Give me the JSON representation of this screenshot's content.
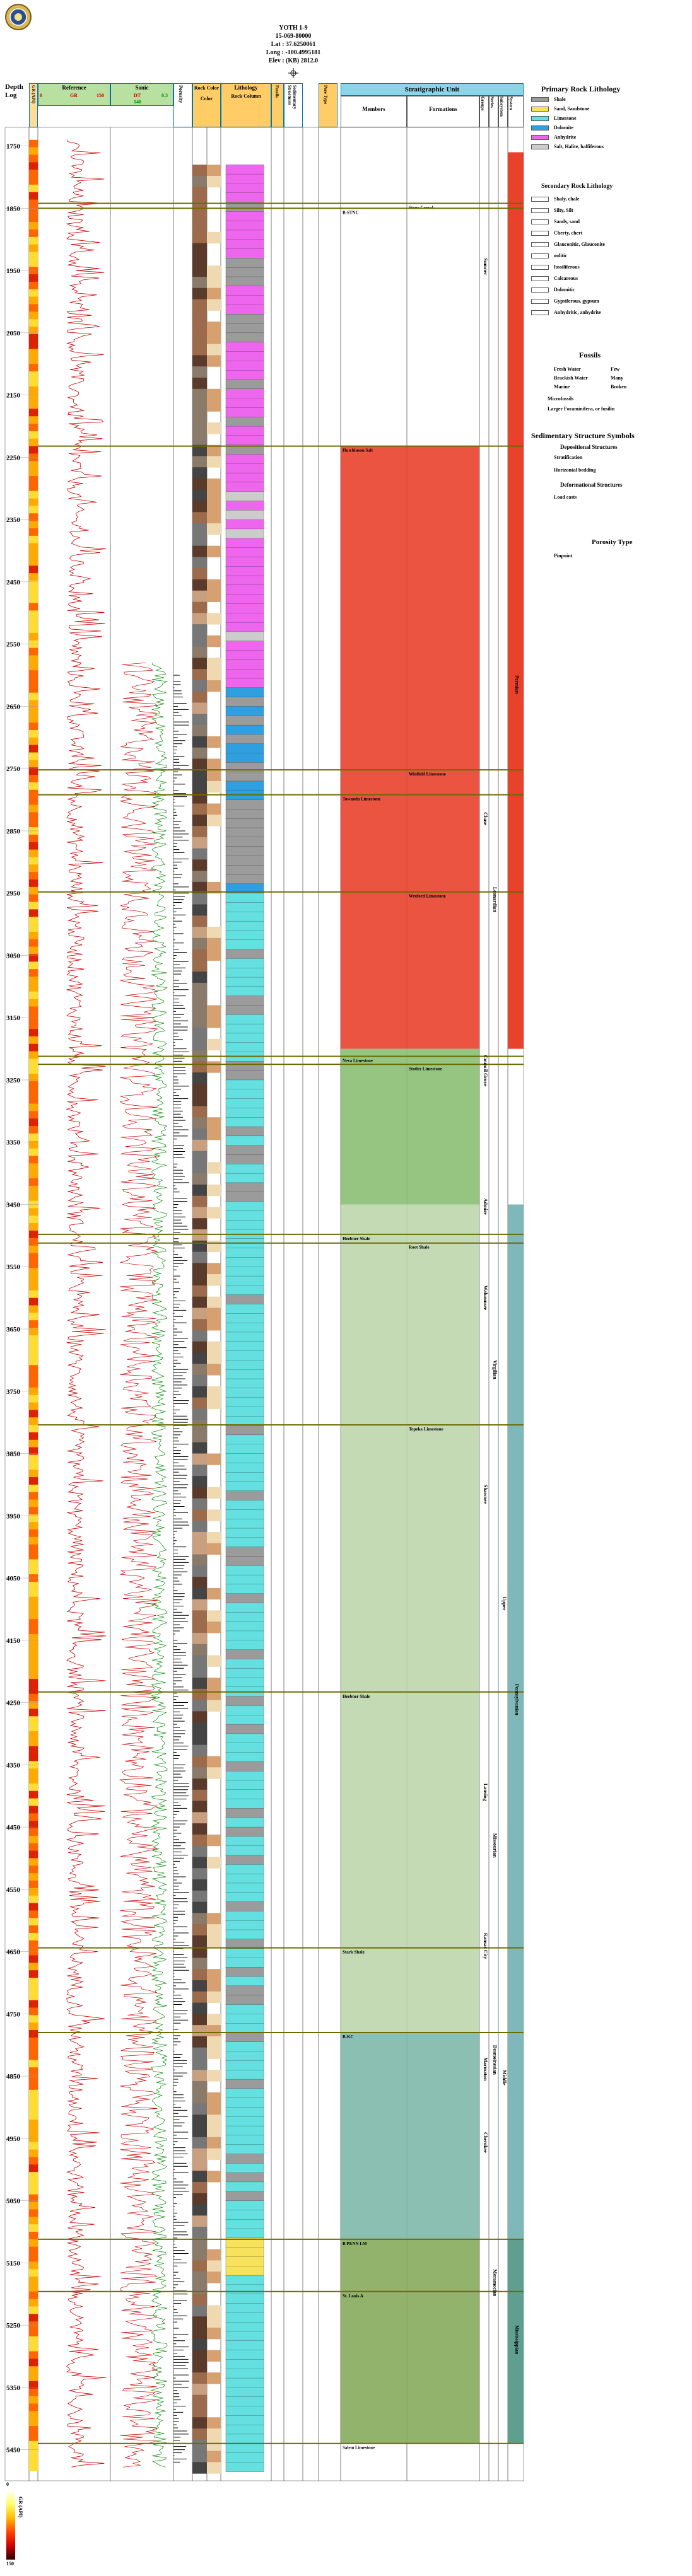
{
  "header": {
    "title": "YOTH 1-9",
    "api": "15-069-80000",
    "lat": "Lat : 37.6250061",
    "long": "Long : -100.4995181",
    "elev": "Elev : (KB) 2812.0",
    "well_symbol": "gas-well-symbol"
  },
  "columns": {
    "depth_log": "Depth Log",
    "gamma_ray": "GR (API)",
    "reference": "Reference",
    "sonic": "Sonic",
    "rock_color": "Rock Color",
    "porosity": "Porosity",
    "color": "Color",
    "lithology": "Lithology",
    "rock_column": "Rock Column",
    "fossils": "Fossils",
    "sed_structures": "Sedimentary Structures",
    "pore_type": "Pore Type",
    "strat_unit": "Stratigraphic Unit",
    "members": "Members",
    "formations": "Formations",
    "groups": "Groups",
    "series": "Series",
    "subsystem": "Subsystem",
    "system": "System"
  },
  "track_scales": {
    "gr": {
      "left": "0",
      "label": "GR",
      "right": "150"
    },
    "sonic_left": "DT",
    "sonic_right": "0.3",
    "sonic_sub": "140",
    "porosity_range": "0   0.3"
  },
  "depths": [
    "1750",
    "1850",
    "1950",
    "2050",
    "2150",
    "2250",
    "2350",
    "2450",
    "2550",
    "2650",
    "2750",
    "2850",
    "2950",
    "3050",
    "3150",
    "3250",
    "3350",
    "3450",
    "3550",
    "3650",
    "3750",
    "3850",
    "3950",
    "4050",
    "4150",
    "4250",
    "4350",
    "4450",
    "4550",
    "4650",
    "4750",
    "4850",
    "4950",
    "5050",
    "5150",
    "5250",
    "5350",
    "5450"
  ],
  "tops": [
    {
      "label": "Stone Corral",
      "col": "formation",
      "depth": 1842
    },
    {
      "label": "B-STNC",
      "col": "member",
      "depth": 1850
    },
    {
      "label": "Hutchinson Salt",
      "col": "member",
      "depth": 2232
    },
    {
      "label": "Winfield Limestone",
      "col": "formation",
      "depth": 2752
    },
    {
      "label": "Towanda Limestone",
      "col": "member",
      "depth": 2792
    },
    {
      "label": "Wreford Limestone",
      "col": "formation",
      "depth": 2948
    },
    {
      "label": "Stotler Limestone",
      "col": "formation",
      "depth": 3225
    },
    {
      "label": "Neva Limestone",
      "col": "member",
      "depth": 3212
    },
    {
      "label": "Heebner Shale",
      "col": "member",
      "depth": 3498
    },
    {
      "label": "Root Shale",
      "col": "formation",
      "depth": 3512
    },
    {
      "label": "Topeka Limestone",
      "col": "formation",
      "depth": 3804
    },
    {
      "label": "Heebner Shale",
      "col": "member",
      "depth": 4233
    },
    {
      "label": "Stark Shale",
      "col": "member",
      "depth": 4644
    },
    {
      "label": "B-KC",
      "col": "member",
      "depth": 4780
    },
    {
      "label": "B PENN LM",
      "col": "member",
      "depth": 5112
    },
    {
      "label": "St. Louis A",
      "col": "member",
      "depth": 5196
    },
    {
      "label": "Salem Limestone",
      "col": "member",
      "depth": 5440
    }
  ],
  "strat_labels": {
    "groups": [
      {
        "label": "Sumner",
        "depth": 1930
      },
      {
        "label": "Chase",
        "depth": 2820
      },
      {
        "label": "Council Grove",
        "depth": 3210
      },
      {
        "label": "Admire",
        "depth": 3440
      },
      {
        "label": "Wabaunsee",
        "depth": 3580
      },
      {
        "label": "Shawnee",
        "depth": 3900
      },
      {
        "label": "Lansing",
        "depth": 4380
      },
      {
        "label": "Kansas City",
        "depth": 4620
      },
      {
        "label": "Marmaton",
        "depth": 4820
      },
      {
        "label": "Cherokee",
        "depth": 4940
      }
    ],
    "series": [
      {
        "label": "Leonardian",
        "depth": 2940
      },
      {
        "label": "Virgilian",
        "depth": 3700
      },
      {
        "label": "Missourian",
        "depth": 4460
      },
      {
        "label": "Desmoinesian",
        "depth": 4800
      },
      {
        "label": "Meramecian",
        "depth": 5160
      }
    ],
    "subsystem": [
      {
        "label": "Upper",
        "depth": 4080
      },
      {
        "label": "Middle",
        "depth": 4840
      }
    ],
    "system": [
      {
        "label": "Permian",
        "depth": 2600
      },
      {
        "label": "Pennsylvanian",
        "depth": 4220
      },
      {
        "label": "Mississippian",
        "depth": 5250
      }
    ]
  },
  "legend": {
    "primary_title": "Primary Rock Lithology",
    "primary": [
      {
        "label": "Shale",
        "color": "#9b9b9b"
      },
      {
        "label": "Sand, Sandstone",
        "color": "#f7e35b"
      },
      {
        "label": "Limestone",
        "color": "#64e0e0"
      },
      {
        "label": "Dolomite",
        "color": "#2f9fdf"
      },
      {
        "label": "Anhydrite",
        "color": "#ee66ee"
      },
      {
        "label": "Salt, Halite, halfiferous",
        "color": "#cccccc"
      }
    ],
    "secondary_title": "Secondary Rock Lithology",
    "secondary": [
      "Shaly, chale",
      "Silty, Silt",
      "Sandy, sand",
      "Cherty, chert",
      "Glauconitic, Glauconite",
      "oolitic",
      "fossiliferous",
      "Calcareous",
      "Dolomitic",
      "Gypsiferous, gypsum",
      "Anhydritic, anhydrite"
    ],
    "fossils_title": "Fossils",
    "fossils_col1": [
      "Fresh Water",
      "Brackish Water",
      "Marine"
    ],
    "fossils_col2": [
      "Few",
      "Many",
      "Broken"
    ],
    "fossils_extra": [
      "Microfossils",
      "Larger Foraminifera, or fusilin"
    ],
    "sed_title": "Sedimentary Structure Symbols",
    "sed_dep_title": "Depositional Structures",
    "sed_dep": [
      "Stratification",
      "Horizontal bedding"
    ],
    "sed_def_title": "Deformational Structures",
    "sed_def": [
      "Load casts"
    ],
    "porosity_title": "Porosity Type",
    "porosity": [
      "Pinpoint"
    ]
  },
  "colorbar": {
    "title": "GR (API)",
    "min": "0",
    "max": "150"
  }
}
